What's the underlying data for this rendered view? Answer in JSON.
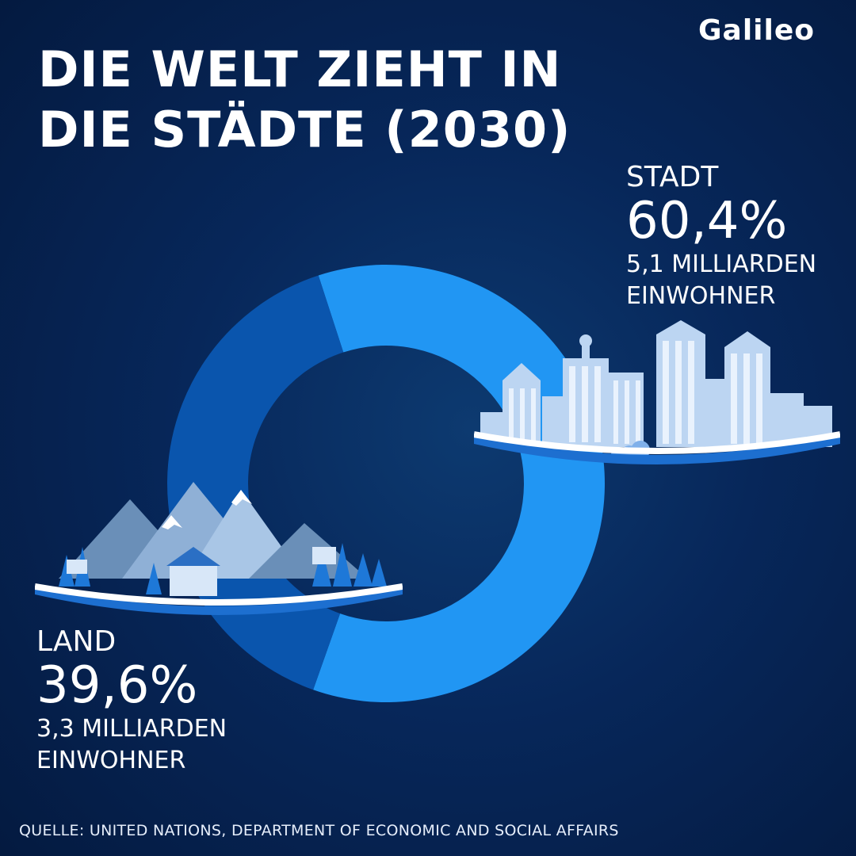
{
  "brand": {
    "logo_text": "Galileo"
  },
  "title": {
    "line1": "DIE WELT ZIEHT IN",
    "line2": "DIE STÄDTE (2030)"
  },
  "chart_data": {
    "type": "pie",
    "style": "donut",
    "title": "DIE WELT ZIEHT IN DIE STÄDTE (2030)",
    "slices": [
      {
        "name": "STADT",
        "value": 60.4,
        "value_label": "60,4%",
        "desc_line1": "5,1 MILLIARDEN",
        "desc_line2": "EINWOHNER",
        "color": "#2196f3"
      },
      {
        "name": "LAND",
        "value": 39.6,
        "value_label": "39,6%",
        "desc_line1": "3,3 MILLIARDEN",
        "desc_line2": "EINWOHNER",
        "color": "#0a55ad"
      }
    ]
  },
  "source": "QUELLE: UNITED NATIONS, DEPARTMENT OF ECONOMIC AND SOCIAL AFFAIRS",
  "illustrations": {
    "city": "city-skyline-icon",
    "country": "mountain-village-icon"
  }
}
